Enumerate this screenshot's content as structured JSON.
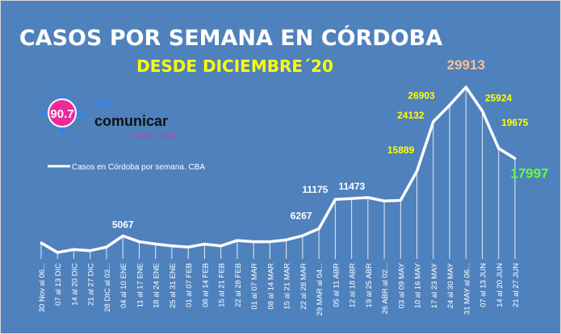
{
  "logo": {
    "frequency": "90.7",
    "brand_top": "fm",
    "brand": "comunicar",
    "location": "Colonia Caroya"
  },
  "chart_data": {
    "type": "line",
    "title": "CASOS POR SEMANA EN CÓRDOBA",
    "subtitle": "DESDE DICIEMBRE´20",
    "legend": {
      "label": "Casos en Córdoba por semana. CBA",
      "placement": "left"
    },
    "xlabel": "",
    "ylabel": "",
    "ylim": [
      0,
      32000
    ],
    "grid": false,
    "categories": [
      "30 Nov al 06...",
      "07 al 13 DIC",
      "14 al 20 DIC",
      "21 al 27 DIC",
      "28 DIC al 03...",
      "04 al 10 ENE",
      "11 al 17 ENE",
      "18 al 24 ENE",
      "25 al 31 ENE",
      "01 al 07 FEB",
      "08 al 14 FEB",
      "15 al 21 FEB",
      "22 al 28 FEB",
      "01 al 07 MAR",
      "08 al 14 MAR",
      "15 al 21 MAR",
      "22 al 28 MAR",
      "29 MAR al 04...",
      "05 al 11 ABR",
      "12 al 18 ABR",
      "19 al 25 ABR",
      "26 ABR al 02...",
      "03 al 09 MAY",
      "10 al 16 MAY",
      "17 al 23 MAY",
      "24 al 30 MAY",
      "31 MAY al 06...",
      "07 al 13 JUN",
      "14 al 20 JUN",
      "21 al 27 JUN"
    ],
    "values": [
      3900,
      2300,
      2800,
      2600,
      3200,
      5067,
      4100,
      3700,
      3400,
      3200,
      3700,
      3400,
      4300,
      4100,
      4100,
      4400,
      5100,
      6267,
      11175,
      11300,
      11473,
      10900,
      11000,
      15889,
      24132,
      26903,
      29913,
      25924,
      19675,
      17997
    ],
    "data_labels": [
      {
        "index": 5,
        "text": "5067",
        "color": "#FFFFFF"
      },
      {
        "index": 17,
        "text": "6267",
        "color": "#FFFFFF"
      },
      {
        "index": 18,
        "text": "11175",
        "color": "#FFFFFF"
      },
      {
        "index": 20,
        "text": "11473",
        "color": "#FFFFFF"
      },
      {
        "index": 23,
        "text": "15889",
        "color": "#FFFF00"
      },
      {
        "index": 24,
        "text": "24132",
        "color": "#FFFF00"
      },
      {
        "index": 25,
        "text": "26903",
        "color": "#FFFF00"
      },
      {
        "index": 26,
        "text": "29913",
        "color": "#FAC090"
      },
      {
        "index": 27,
        "text": "25924",
        "color": "#FFFF00"
      },
      {
        "index": 28,
        "text": "19675",
        "color": "#FFFF00"
      },
      {
        "index": 29,
        "text": "17997",
        "color": "#66FF33"
      }
    ]
  }
}
